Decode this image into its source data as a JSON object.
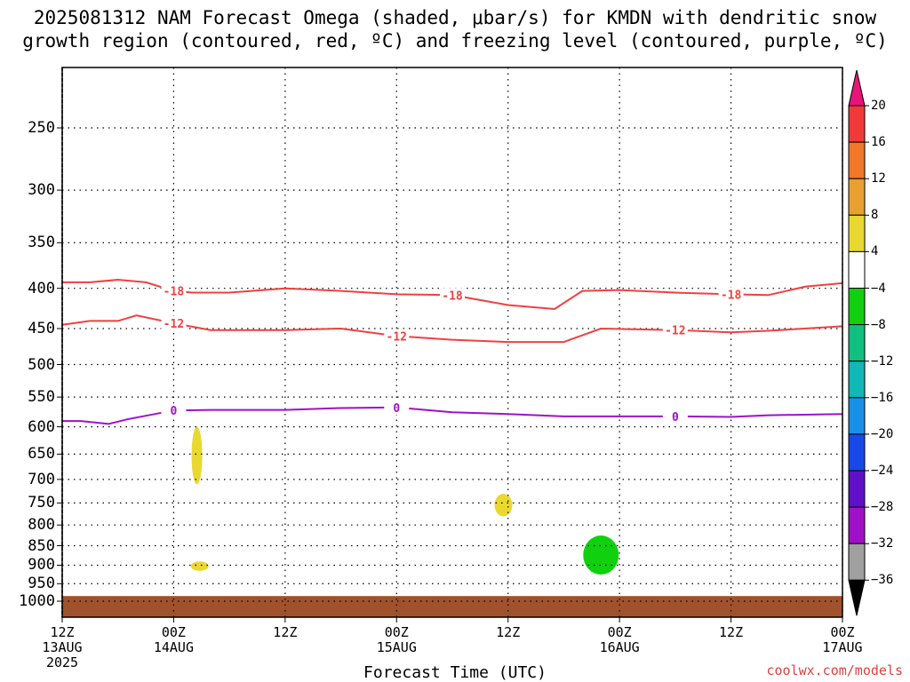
{
  "title_line1": "2025081312 NAM Forecast Omega (shaded, μbar/s) for KMDN with dendritic snow",
  "title_line2": "growth region (contoured, red, ºC) and freezing level (contoured, purple, ºC)",
  "xaxis_title": "Forecast Time (UTC)",
  "credit": "coolwx.com/models",
  "y_ticks": [
    "250",
    "300",
    "350",
    "400",
    "450",
    "500",
    "550",
    "600",
    "650",
    "700",
    "750",
    "800",
    "850",
    "900",
    "950",
    "1000"
  ],
  "x_ticks": [
    {
      "l1": "12Z",
      "l2": "13AUG",
      "l3": "2025"
    },
    {
      "l1": "00Z",
      "l2": "14AUG",
      "l3": ""
    },
    {
      "l1": "12Z",
      "l2": "",
      "l3": ""
    },
    {
      "l1": "00Z",
      "l2": "15AUG",
      "l3": ""
    },
    {
      "l1": "12Z",
      "l2": "",
      "l3": ""
    },
    {
      "l1": "00Z",
      "l2": "16AUG",
      "l3": ""
    },
    {
      "l1": "12Z",
      "l2": "",
      "l3": ""
    },
    {
      "l1": "00Z",
      "l2": "17AUG",
      "l3": ""
    }
  ],
  "colorbar": {
    "labels": [
      "20",
      "16",
      "12",
      "8",
      "4",
      "−4",
      "−8",
      "−12",
      "−16",
      "−20",
      "−24",
      "−28",
      "−32",
      "−36"
    ],
    "colors": [
      "#e8147a",
      "#f03a3a",
      "#f07828",
      "#e8a030",
      "#e8d830",
      "#ffffff",
      "#10d010",
      "#10c080",
      "#10b8b8",
      "#1890e8",
      "#1848e8",
      "#6010c8",
      "#a010c8",
      "#a0a0a0",
      "#000000"
    ]
  },
  "chart_data": {
    "type": "heatmap",
    "x_unit": "forecast hour (valid from 2025-08-13 12Z)",
    "x_range": [
      0,
      84
    ],
    "y_unit": "pressure (hPa)",
    "y_range": [
      1050,
      200
    ],
    "contours": [
      {
        "label": "-18",
        "color": "#f04040",
        "points": [
          [
            0,
            393
          ],
          [
            3,
            393
          ],
          [
            6,
            390
          ],
          [
            9,
            393
          ],
          [
            12,
            403
          ],
          [
            14,
            405
          ],
          [
            18,
            405
          ],
          [
            24,
            400
          ],
          [
            30,
            403
          ],
          [
            36,
            407
          ],
          [
            42,
            408
          ],
          [
            48,
            420
          ],
          [
            53,
            425
          ],
          [
            56,
            403
          ],
          [
            60,
            402
          ],
          [
            66,
            405
          ],
          [
            72,
            407
          ],
          [
            76,
            408
          ],
          [
            80,
            398
          ],
          [
            84,
            394
          ]
        ]
      },
      {
        "label": "-12",
        "color": "#f04040",
        "points": [
          [
            0,
            445
          ],
          [
            3,
            440
          ],
          [
            6,
            440
          ],
          [
            8,
            433
          ],
          [
            12,
            443
          ],
          [
            16,
            452
          ],
          [
            24,
            452
          ],
          [
            30,
            450
          ],
          [
            36,
            460
          ],
          [
            42,
            465
          ],
          [
            48,
            468
          ],
          [
            54,
            468
          ],
          [
            58,
            450
          ],
          [
            66,
            452
          ],
          [
            72,
            455
          ],
          [
            76,
            453
          ],
          [
            84,
            447
          ]
        ]
      },
      {
        "label": "0",
        "color": "#a010c8",
        "points": [
          [
            0,
            590
          ],
          [
            2,
            590
          ],
          [
            5,
            595
          ],
          [
            7,
            587
          ],
          [
            12,
            572
          ],
          [
            16,
            571
          ],
          [
            24,
            571
          ],
          [
            30,
            568
          ],
          [
            36,
            567
          ],
          [
            42,
            575
          ],
          [
            48,
            578
          ],
          [
            54,
            582
          ],
          [
            60,
            582
          ],
          [
            66,
            582
          ],
          [
            72,
            583
          ],
          [
            76,
            580
          ],
          [
            84,
            578
          ]
        ]
      }
    ],
    "shaded": [
      {
        "value_range": [
          4,
          8
        ],
        "center_hour": 14.5,
        "p_min": 600,
        "p_max": 710
      },
      {
        "value_range": [
          4,
          8
        ],
        "center_hour": 14.8,
        "p_min": 890,
        "p_max": 915
      },
      {
        "value_range": [
          4,
          8
        ],
        "center_hour": 47.5,
        "p_min": 730,
        "p_max": 780
      },
      {
        "value_range": [
          -8,
          -4
        ],
        "center_hour": 58,
        "p_min": 825,
        "p_max": 925
      }
    ],
    "ground_level_hPa": 985,
    "grid": true,
    "colorbar_placement": "right"
  }
}
